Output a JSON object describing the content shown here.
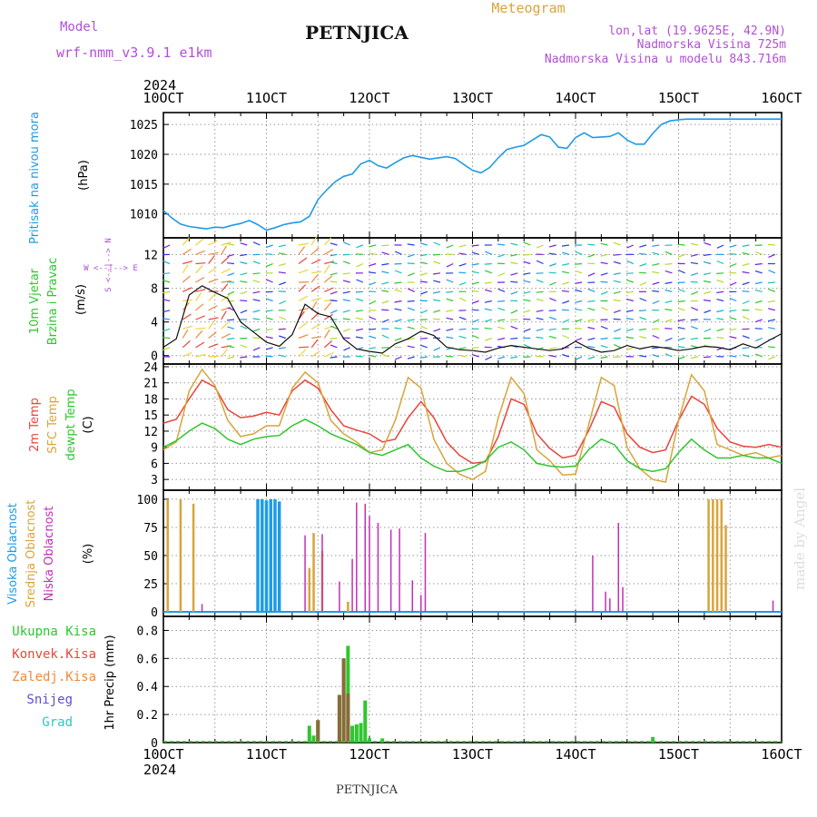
{
  "header": {
    "model_label": "Model",
    "model_name": "wrf-nmm_v3.9.1 e1km",
    "station": "PETNJICA",
    "product": "Meteogram",
    "lonlat": "lon,lat (19.9625E, 42.9N)",
    "altitude": "Nadmorska Visina 725m",
    "model_altitude": "Nadmorska Visina u modelu 843.716m"
  },
  "footer": {
    "station": "PETNJICA",
    "credit": "made by Angel"
  },
  "colors": {
    "pressure": "#1e9be6",
    "t2m": "#e8463c",
    "sfc": "#d9a43a",
    "dew": "#2fc62f",
    "cloud_high": "#1e9be6",
    "cloud_mid": "#d9a43a",
    "cloud_low": "#c22fb4",
    "precip_total": "#2fc62f",
    "precip_conv": "#e8463c",
    "precip_mix": "#ed8a3b",
    "snow": "#5b4fd6",
    "hail": "#2fc6c6",
    "wind_label": "#2fc62f",
    "wind_legend": "#b24fd6"
  },
  "chart_data": [
    {
      "type": "line",
      "id": "pressure",
      "ylabel": "Pritisak na nivou mora",
      "unit": "(hPa)",
      "x_ticks": [
        "10OCT",
        "11OCT",
        "12OCT",
        "13OCT",
        "14OCT",
        "15OCT",
        "16OCT"
      ],
      "x_year": "2024",
      "yticks": [
        1010,
        1015,
        1020,
        1025
      ],
      "ylim": [
        1006,
        1027
      ],
      "xlim": [
        0,
        144
      ],
      "series": [
        {
          "key": "pressure",
          "x": [
            0,
            2,
            4,
            6,
            8,
            10,
            12,
            14,
            16,
            18,
            20,
            22,
            24,
            26,
            28,
            30,
            32,
            34,
            36,
            38,
            40,
            42,
            44,
            46,
            48,
            50,
            52,
            54,
            56,
            58,
            60,
            62,
            64,
            66,
            68,
            70,
            72,
            74,
            76,
            78,
            80,
            82,
            84,
            86,
            88,
            90,
            92,
            94,
            96,
            98,
            100,
            102,
            104,
            106,
            108,
            110,
            112,
            114,
            116,
            118,
            120,
            122,
            124,
            126,
            128,
            130,
            132,
            134,
            136,
            138,
            140,
            142,
            144
          ],
          "values": [
            1010.6,
            1009.3,
            1008.3,
            1007.9,
            1007.7,
            1007.5,
            1007.8,
            1007.7,
            1008.1,
            1008.4,
            1008.9,
            1008.2,
            1007.3,
            1007.7,
            1008.2,
            1008.5,
            1008.7,
            1009.6,
            1012.4,
            1014.0,
            1015.4,
            1016.3,
            1016.7,
            1018.4,
            1019.0,
            1018.1,
            1017.7,
            1018.6,
            1019.4,
            1019.8,
            1019.5,
            1019.2,
            1019.4,
            1019.6,
            1019.3,
            1018.3,
            1017.3,
            1016.9,
            1017.8,
            1019.4,
            1020.8,
            1021.2,
            1021.5,
            1022.4,
            1023.3,
            1022.9,
            1021.2,
            1021.0,
            1022.8,
            1023.6,
            1022.8,
            1022.9,
            1023.0,
            1023.6,
            1022.4,
            1021.7,
            1021.7,
            1023.5,
            1025.0,
            1025.6,
            1025.8,
            1025.9,
            1025.9,
            1025.9,
            1025.9,
            1025.9,
            1025.9,
            1025.9,
            1025.9,
            1025.9,
            1025.9,
            1025.9,
            1025.9
          ]
        }
      ]
    },
    {
      "type": "line",
      "id": "wind",
      "ylabel": "10m Vjetar Brzina i Pravac",
      "unit": "(m/s)",
      "legend_text": "W <--|--> E",
      "legend_vertical": "S <--|--> N",
      "yticks": [
        0,
        4,
        8,
        12
      ],
      "ylim": [
        -1,
        14
      ],
      "xlim": [
        0,
        144
      ],
      "series": [
        {
          "key": "speed",
          "x": [
            0,
            3,
            6,
            9,
            12,
            15,
            18,
            21,
            24,
            27,
            30,
            33,
            36,
            39,
            42,
            45,
            48,
            51,
            54,
            57,
            60,
            63,
            66,
            69,
            72,
            75,
            78,
            81,
            84,
            87,
            90,
            93,
            96,
            99,
            102,
            105,
            108,
            111,
            114,
            117,
            120,
            123,
            126,
            129,
            132,
            135,
            138,
            141,
            144
          ],
          "values": [
            1.0,
            2.0,
            7.2,
            8.3,
            7.5,
            6.8,
            4.0,
            2.8,
            1.6,
            1.1,
            2.5,
            6.1,
            5.0,
            4.6,
            2.0,
            0.8,
            0.5,
            0.3,
            1.4,
            2.0,
            2.9,
            2.4,
            1.0,
            0.7,
            0.6,
            0.4,
            0.9,
            1.2,
            1.0,
            0.8,
            0.6,
            0.8,
            1.7,
            0.9,
            0.4,
            0.6,
            1.2,
            0.8,
            1.1,
            0.9,
            0.6,
            0.8,
            1.1,
            1.0,
            0.7,
            1.4,
            0.9,
            1.8,
            2.6
          ]
        }
      ]
    },
    {
      "type": "line",
      "id": "temperature",
      "ylabel": [
        "2m Temp",
        "SFC Temp",
        "dewpt Temp"
      ],
      "unit": "(C)",
      "yticks": [
        3,
        6,
        9,
        12,
        15,
        18,
        21,
        24
      ],
      "ylim": [
        1,
        24.5
      ],
      "xlim": [
        0,
        144
      ],
      "series": [
        {
          "key": "t2m",
          "name": "2m Temp",
          "x": [
            0,
            3,
            6,
            9,
            12,
            15,
            18,
            21,
            24,
            27,
            30,
            33,
            36,
            39,
            42,
            45,
            48,
            51,
            54,
            57,
            60,
            63,
            66,
            69,
            72,
            75,
            78,
            81,
            84,
            87,
            90,
            93,
            96,
            99,
            102,
            105,
            108,
            111,
            114,
            117,
            120,
            123,
            126,
            129,
            132,
            135,
            138,
            141,
            144
          ],
          "values": [
            13.5,
            14.2,
            18.0,
            21.5,
            20.2,
            16.0,
            14.5,
            14.8,
            15.5,
            15.0,
            19.5,
            21.5,
            20.0,
            16.0,
            13.0,
            12.2,
            11.5,
            10.0,
            10.5,
            14.5,
            17.5,
            14.5,
            10.0,
            7.5,
            6.0,
            6.3,
            11.0,
            18.0,
            17.0,
            11.5,
            8.8,
            7.0,
            7.5,
            12.0,
            17.5,
            16.5,
            11.5,
            9.0,
            8.0,
            8.5,
            14.0,
            18.5,
            17.0,
            12.5,
            10.0,
            9.2,
            9.0,
            9.5,
            9.0
          ]
        },
        {
          "key": "sfc",
          "name": "SFC Temp",
          "x": [
            0,
            3,
            6,
            9,
            12,
            15,
            18,
            21,
            24,
            27,
            30,
            33,
            36,
            39,
            42,
            45,
            48,
            51,
            54,
            57,
            60,
            63,
            66,
            69,
            72,
            75,
            78,
            81,
            84,
            87,
            90,
            93,
            96,
            99,
            102,
            105,
            108,
            111,
            114,
            117,
            120,
            123,
            126,
            129,
            132,
            135,
            138,
            141,
            144
          ],
          "values": [
            8.5,
            10.0,
            19.5,
            23.5,
            20.5,
            14.0,
            11.0,
            11.5,
            13.0,
            13.0,
            20.0,
            23.0,
            21.0,
            14.0,
            11.5,
            10.0,
            8.0,
            8.5,
            14.0,
            22.0,
            20.0,
            10.5,
            6.0,
            4.0,
            3.0,
            4.5,
            14.5,
            22.0,
            19.0,
            8.5,
            6.5,
            3.8,
            4.0,
            13.0,
            22.0,
            20.5,
            9.0,
            5.0,
            3.0,
            2.5,
            14.0,
            22.5,
            19.5,
            9.5,
            8.5,
            7.5,
            8.0,
            7.0,
            7.5
          ]
        },
        {
          "key": "dew",
          "name": "dewpt Temp",
          "x": [
            0,
            3,
            6,
            9,
            12,
            15,
            18,
            21,
            24,
            27,
            30,
            33,
            36,
            39,
            42,
            45,
            48,
            51,
            54,
            57,
            60,
            63,
            66,
            69,
            72,
            75,
            78,
            81,
            84,
            87,
            90,
            93,
            96,
            99,
            102,
            105,
            108,
            111,
            114,
            117,
            120,
            123,
            126,
            129,
            132,
            135,
            138,
            141,
            144
          ],
          "values": [
            9.0,
            10.2,
            12.0,
            13.5,
            12.5,
            10.5,
            9.5,
            10.5,
            11.0,
            11.2,
            13.0,
            14.2,
            13.0,
            11.5,
            10.5,
            9.5,
            8.0,
            7.5,
            8.5,
            9.5,
            7.0,
            5.5,
            4.5,
            4.5,
            5.2,
            6.5,
            9.0,
            10.0,
            8.5,
            6.0,
            5.5,
            5.3,
            5.5,
            8.5,
            10.5,
            9.5,
            6.5,
            5.0,
            4.5,
            5.0,
            8.0,
            10.5,
            8.5,
            7.0,
            7.0,
            7.5,
            7.0,
            7.0,
            6.0
          ]
        }
      ]
    },
    {
      "type": "bar",
      "id": "clouds",
      "ylabel": [
        "Visoka Oblacnost",
        "Srednja Oblacnost",
        "Niska Oblacnost"
      ],
      "unit": "(%)",
      "yticks": [
        0,
        25,
        50,
        75,
        100
      ],
      "ylim": [
        -4,
        108
      ],
      "xlim": [
        0,
        144
      ],
      "series": [
        {
          "key": "cloud_high",
          "name": "Visoka Oblacnost",
          "x": [
            22,
            23,
            24,
            25,
            26,
            27
          ],
          "values": [
            100,
            100,
            99,
            100,
            100,
            98
          ]
        },
        {
          "key": "cloud_mid",
          "name": "Srednja Oblacnost",
          "x": [
            1,
            4,
            7,
            34,
            35,
            37,
            43,
            127,
            128,
            129,
            130,
            131
          ],
          "values": [
            100,
            100,
            96,
            39,
            70,
            54,
            9,
            100,
            100,
            100,
            100,
            77
          ]
        },
        {
          "key": "cloud_low",
          "name": "Niska Oblacnost",
          "x": [
            9,
            33,
            37,
            41,
            44,
            45,
            47,
            48,
            50,
            53,
            55,
            58,
            60,
            61,
            100,
            103,
            104,
            106,
            107,
            142
          ],
          "values": [
            7,
            68,
            69,
            27,
            47,
            97,
            96,
            85,
            79,
            73,
            74,
            28,
            15,
            70,
            50,
            18,
            12,
            79,
            22,
            10
          ]
        }
      ]
    },
    {
      "type": "bar",
      "id": "precip",
      "ylabel": "1hr Precip",
      "unit": "(mm)",
      "yticks": [
        0,
        0.2,
        0.4,
        0.6,
        0.8
      ],
      "ylim": [
        0,
        0.9
      ],
      "xlim": [
        0,
        144
      ],
      "legend": [
        "Ukupna Kisa",
        "Konvek.Kisa",
        "Zaledj.Kisa",
        "Snijeg",
        "Grad"
      ],
      "series": [
        {
          "key": "precip_total",
          "name": "Ukupna Kisa",
          "x": [
            34,
            35,
            36,
            41,
            42,
            43,
            44,
            45,
            46,
            47,
            48,
            51,
            104,
            114
          ],
          "values": [
            0.12,
            0.05,
            0.16,
            0.34,
            0.6,
            0.69,
            0.12,
            0.13,
            0.14,
            0.3,
            0.03,
            0.03,
            0.01,
            0.04
          ]
        },
        {
          "key": "precip_conv",
          "name": "Konvek.Kisa",
          "x": [
            36,
            41,
            42,
            43
          ],
          "values": [
            0.16,
            0.34,
            0.6,
            0.35
          ]
        }
      ]
    }
  ]
}
